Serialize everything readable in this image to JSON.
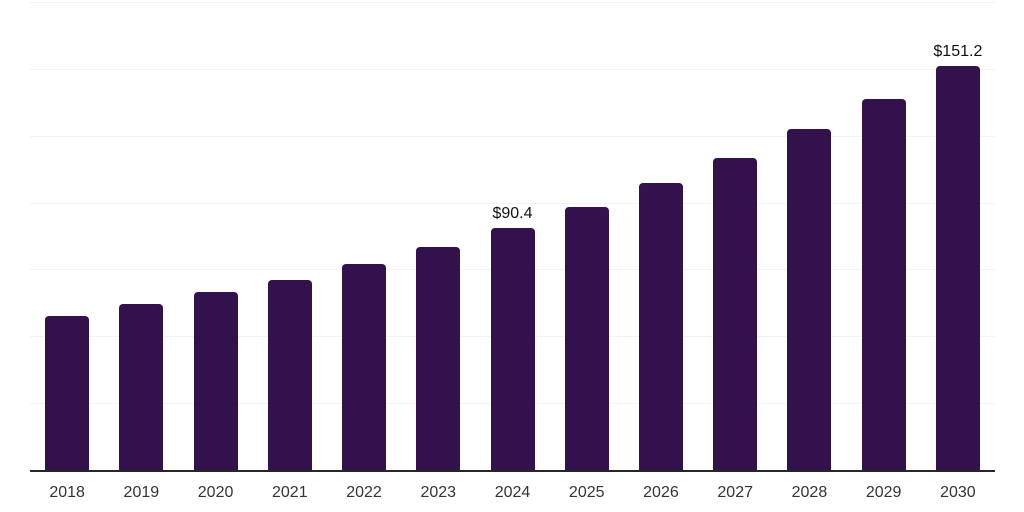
{
  "chart": {
    "background_color": "#ffffff",
    "bar_color": "#32114d",
    "axis_line_color": "#262626",
    "gridline_color": "#f2f2f2",
    "tick_label_color": "#333333",
    "data_label_color": "#111111"
  },
  "chart_data": {
    "type": "bar",
    "categories": [
      "2018",
      "2019",
      "2020",
      "2021",
      "2022",
      "2023",
      "2024",
      "2025",
      "2026",
      "2027",
      "2028",
      "2029",
      "2030"
    ],
    "values": [
      57.5,
      61.9,
      66.4,
      71.2,
      77.1,
      83.2,
      90.4,
      98.5,
      107.4,
      116.8,
      127.5,
      138.8,
      151.2
    ],
    "data_labels": [
      null,
      null,
      null,
      null,
      null,
      null,
      "$90.4",
      null,
      null,
      null,
      null,
      null,
      "$151.2"
    ],
    "title": "",
    "xlabel": "",
    "ylabel": "",
    "ylim": [
      0,
      175
    ],
    "gridline_step": 25,
    "grid": true,
    "legend": false
  }
}
